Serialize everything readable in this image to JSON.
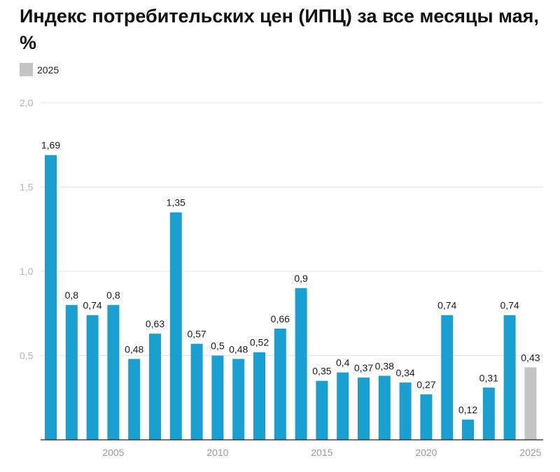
{
  "title": "Индекс потребительских цен (ИПЦ) за все месяцы мая, %",
  "legend": {
    "label": "2025",
    "color": "#c4c4c4"
  },
  "chart_data": {
    "type": "bar",
    "title": "Индекс потребительских цен (ИПЦ) за все месяцы мая, %",
    "x": [
      2002,
      2003,
      2004,
      2005,
      2006,
      2007,
      2008,
      2009,
      2010,
      2011,
      2012,
      2013,
      2014,
      2015,
      2016,
      2017,
      2018,
      2019,
      2020,
      2021,
      2022,
      2023,
      2024,
      2025
    ],
    "values": [
      1.69,
      0.8,
      0.74,
      0.8,
      0.48,
      0.63,
      1.35,
      0.57,
      0.5,
      0.48,
      0.52,
      0.66,
      0.9,
      0.35,
      0.4,
      0.37,
      0.38,
      0.34,
      0.27,
      0.74,
      0.12,
      0.31,
      0.74,
      0.43
    ],
    "data_labels": [
      "1,69",
      "0,8",
      "0,74",
      "0,8",
      "0,48",
      "0,63",
      "1,35",
      "0,57",
      "0,5",
      "0,48",
      "0,52",
      "0,66",
      "0,9",
      "0,35",
      "0,4",
      "0,37",
      "0,38",
      "0,34",
      "0,27",
      "0,74",
      "0,12",
      "0,31",
      "0,74",
      "0,43"
    ],
    "colors": {
      "default": "#1aa0d0",
      "highlight": "#c4c4c4",
      "highlight_year": 2025
    },
    "ylim": [
      0,
      2
    ],
    "yticks": [
      {
        "value": 0.5,
        "label": "0,5"
      },
      {
        "value": 1.0,
        "label": "1,0"
      },
      {
        "value": 1.5,
        "label": "1,5"
      },
      {
        "value": 2.0,
        "label": "2,0"
      }
    ],
    "xticks": [
      {
        "value": 2005,
        "label": "2005"
      },
      {
        "value": 2010,
        "label": "2010"
      },
      {
        "value": 2015,
        "label": "2015"
      },
      {
        "value": 2020,
        "label": "2020"
      },
      {
        "value": 2025,
        "label": "2025"
      }
    ],
    "grid": true,
    "legend_position": "top-left"
  }
}
